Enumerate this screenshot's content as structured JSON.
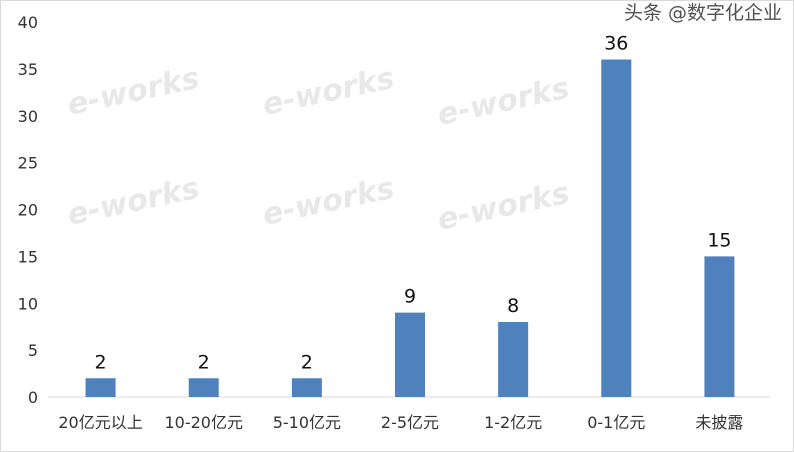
{
  "chart_data": {
    "type": "bar",
    "categories": [
      "20亿元以上",
      "10-20亿元",
      "5-10亿元",
      "2-5亿元",
      "1-2亿元",
      "0-1亿元",
      "未披露"
    ],
    "values": [
      2,
      2,
      2,
      9,
      8,
      36,
      15
    ],
    "ylim": [
      0,
      40
    ],
    "yticks": [
      0,
      5,
      10,
      15,
      20,
      25,
      30,
      35,
      40
    ],
    "grid": false,
    "bar_color": "#4f81bd",
    "data_labels": true
  },
  "watermark": {
    "overlay_text": "头条 @数字化企业",
    "background_logo": "e-works"
  }
}
